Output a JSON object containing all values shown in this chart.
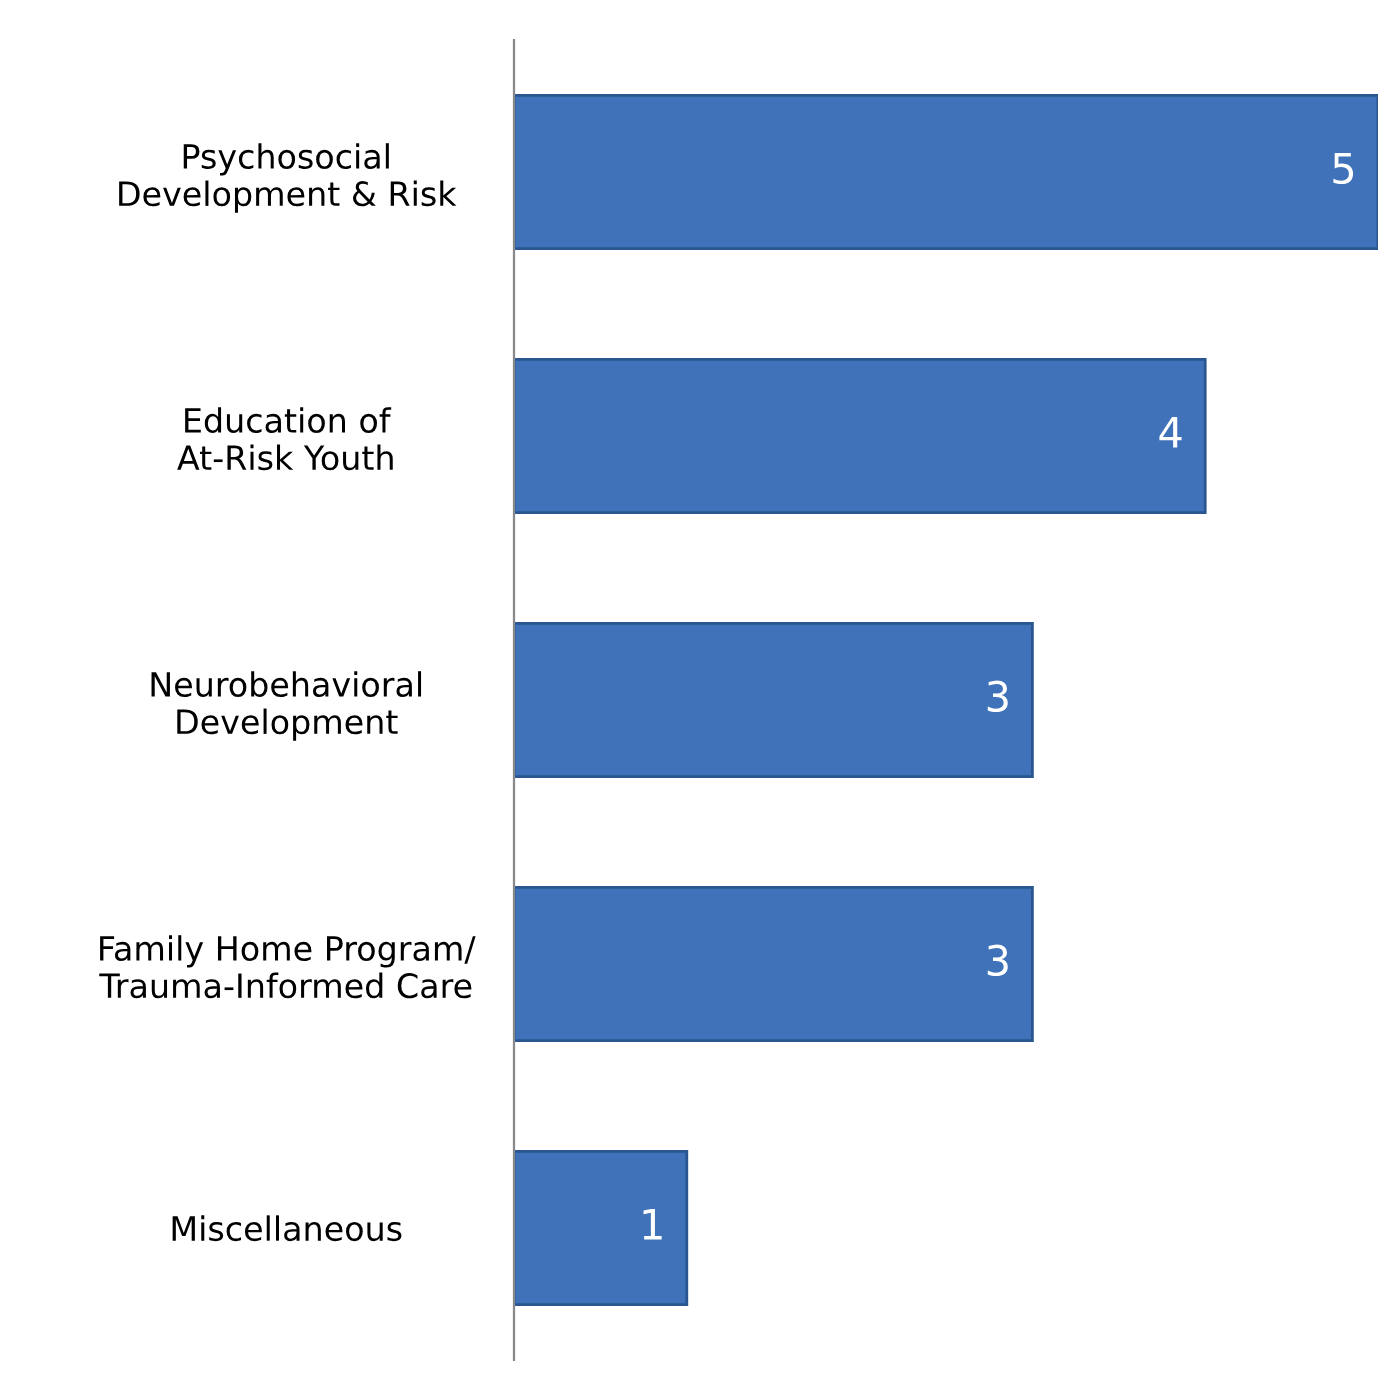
{
  "chart_data": {
    "type": "bar",
    "orientation": "horizontal",
    "categories": [
      "Psychosocial\nDevelopment & Risk",
      "Education of\nAt-Risk Youth",
      "Neurobehavioral\nDevelopment",
      "Family Home Program/\nTrauma-Informed Care",
      "Miscellaneous"
    ],
    "values": [
      5,
      4,
      3,
      3,
      1
    ],
    "color": "#3f72b8",
    "data_labels": true,
    "tick_labels": "y",
    "grid": false,
    "legend": false
  }
}
